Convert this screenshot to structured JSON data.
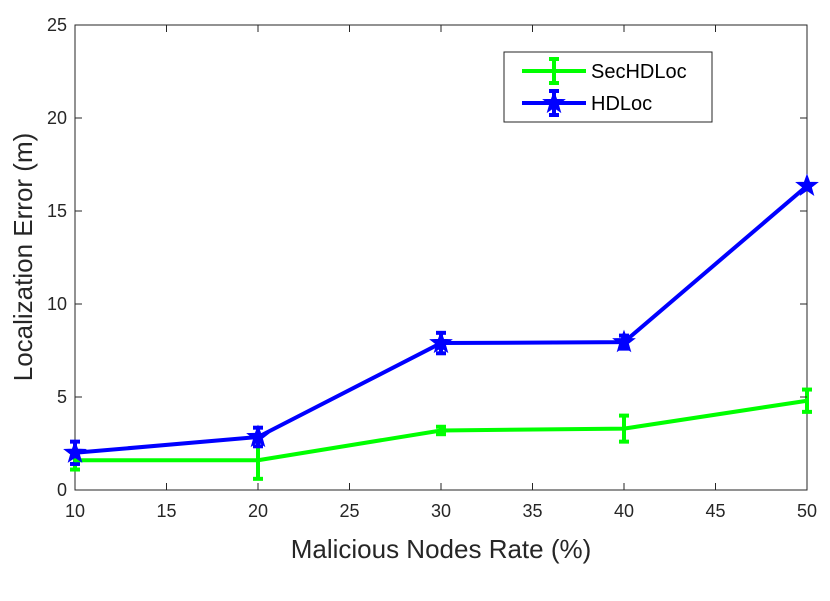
{
  "chart_data": {
    "type": "line",
    "title": "",
    "xlabel": "Malicious Nodes Rate (%)",
    "ylabel": "Localization Error (m)",
    "xlim": [
      10,
      50
    ],
    "ylim": [
      0,
      25
    ],
    "xticks": [
      10,
      15,
      20,
      25,
      30,
      35,
      40,
      45,
      50
    ],
    "yticks": [
      0,
      5,
      10,
      15,
      20,
      25
    ],
    "grid": false,
    "legend_position": "top-right",
    "x": [
      10,
      20,
      30,
      40,
      50
    ],
    "series": [
      {
        "name": "SecHDLoc",
        "color": "#00ff00",
        "marker": "none",
        "values": [
          1.6,
          1.6,
          3.2,
          3.3,
          4.8
        ],
        "errors": [
          0.5,
          1.0,
          0.2,
          0.7,
          0.6
        ]
      },
      {
        "name": "HDLoc",
        "color": "#0000ff",
        "marker": "star",
        "values": [
          2.0,
          2.85,
          7.9,
          7.95,
          16.35
        ],
        "errors": [
          0.6,
          0.5,
          0.55,
          0.35,
          0.1
        ]
      }
    ]
  }
}
